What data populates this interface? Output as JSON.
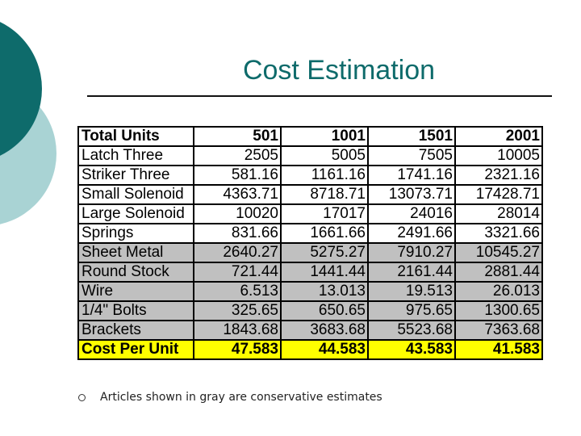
{
  "slide": {
    "title": "Cost Estimation",
    "colors": {
      "accent_dark": "#0e6b6b",
      "accent_light": "#a9d3d4",
      "gray_row": "#c0c0c0",
      "total_row": "#ffff00"
    },
    "table": {
      "header": [
        "Total Units",
        "501",
        "1001",
        "1501",
        "2001"
      ],
      "rows": [
        {
          "label": "Latch Three",
          "values": [
            "2505",
            "5005",
            "7505",
            "10005"
          ],
          "shade": "white"
        },
        {
          "label": "Striker Three",
          "values": [
            "581.16",
            "1161.16",
            "1741.16",
            "2321.16"
          ],
          "shade": "white"
        },
        {
          "label": "Small Solenoid",
          "values": [
            "4363.71",
            "8718.71",
            "13073.71",
            "17428.71"
          ],
          "shade": "white"
        },
        {
          "label": "Large Solenoid",
          "values": [
            "10020",
            "17017",
            "24016",
            "28014"
          ],
          "shade": "white"
        },
        {
          "label": "Springs",
          "values": [
            "831.66",
            "1661.66",
            "2491.66",
            "3321.66"
          ],
          "shade": "white"
        },
        {
          "label": "Sheet Metal",
          "values": [
            "2640.27",
            "5275.27",
            "7910.27",
            "10545.27"
          ],
          "shade": "gray"
        },
        {
          "label": "Round Stock",
          "values": [
            "721.44",
            "1441.44",
            "2161.44",
            "2881.44"
          ],
          "shade": "gray"
        },
        {
          "label": "Wire",
          "values": [
            "6.513",
            "13.013",
            "19.513",
            "26.013"
          ],
          "shade": "gray"
        },
        {
          "label": "1/4\" Bolts",
          "values": [
            "325.65",
            "650.65",
            "975.65",
            "1300.65"
          ],
          "shade": "gray"
        },
        {
          "label": "Brackets",
          "values": [
            "1843.68",
            "3683.68",
            "5523.68",
            "7363.68"
          ],
          "shade": "gray"
        }
      ],
      "total": {
        "label": "Cost Per Unit",
        "values": [
          "47.583",
          "44.583",
          "43.583",
          "41.583"
        ]
      }
    },
    "note": "Articles shown in gray are conservative estimates"
  }
}
